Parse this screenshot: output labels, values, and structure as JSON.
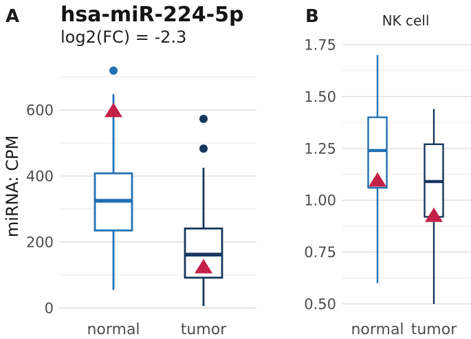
{
  "figure": {
    "panel_a": {
      "label": "A",
      "title": "hsa-miR-224-5p",
      "subtitle": "log2(FC) = -2.3",
      "ylabel": "miRNA: CPM",
      "x_categories": [
        "normal",
        "tumor"
      ]
    },
    "panel_b": {
      "label": "B",
      "title": "NK cell",
      "x_categories": [
        "normal",
        "tumor"
      ]
    }
  },
  "colors": {
    "normal_box": "#2171b5",
    "tumor_box": "#17375e",
    "mean_marker": "#c32148",
    "grid_major": "#dedede",
    "grid_minor": "#e9e9e9",
    "tick_text": "#4d4d4d",
    "title_text": "#141414"
  },
  "chart_data": [
    {
      "type": "boxplot",
      "panel": "A",
      "title": "hsa-miR-224-5p",
      "subtitle": "log2(FC) = -2.3",
      "ylabel": "miRNA: CPM",
      "categories": [
        "normal",
        "tumor"
      ],
      "ylim": [
        0,
        731
      ],
      "yticks": [
        0,
        200,
        400,
        600
      ],
      "ytick_labels": [
        "0",
        "200",
        "400",
        "600"
      ],
      "minor_gridlines": [
        100,
        300,
        500,
        700
      ],
      "grid": "on",
      "legend": "none",
      "series": [
        {
          "name": "normal",
          "color": "#2171b5",
          "whisker_low": 55,
          "q1": 235,
          "median": 325,
          "q3": 408,
          "whisker_high": 648,
          "outliers": [
            719
          ],
          "mean": 600
        },
        {
          "name": "tumor",
          "color": "#17375e",
          "whisker_low": 6,
          "q1": 92,
          "median": 162,
          "q3": 241,
          "whisker_high": 425,
          "outliers": [
            483,
            573
          ],
          "mean": 127
        }
      ]
    },
    {
      "type": "boxplot",
      "panel": "B",
      "title": "NK cell",
      "ylabel": "",
      "categories": [
        "normal",
        "tumor"
      ],
      "ylim": [
        0.48,
        1.78
      ],
      "yticks": [
        0.5,
        0.75,
        1.0,
        1.25,
        1.5,
        1.75
      ],
      "ytick_labels": [
        "0.50",
        "0.75",
        "1.00",
        "1.25",
        "1.50",
        "1.75"
      ],
      "minor_gridlines": [
        0.625,
        0.875,
        1.125,
        1.375,
        1.625
      ],
      "grid": "on",
      "legend": "none",
      "series": [
        {
          "name": "normal",
          "color": "#2171b5",
          "whisker_low": 0.6,
          "q1": 1.06,
          "median": 1.24,
          "q3": 1.4,
          "whisker_high": 1.7,
          "outliers": [],
          "mean": 1.1
        },
        {
          "name": "tumor",
          "color": "#17375e",
          "whisker_low": 0.5,
          "q1": 0.92,
          "median": 1.09,
          "q3": 1.27,
          "whisker_high": 1.44,
          "outliers": [],
          "mean": 0.93
        }
      ]
    }
  ]
}
